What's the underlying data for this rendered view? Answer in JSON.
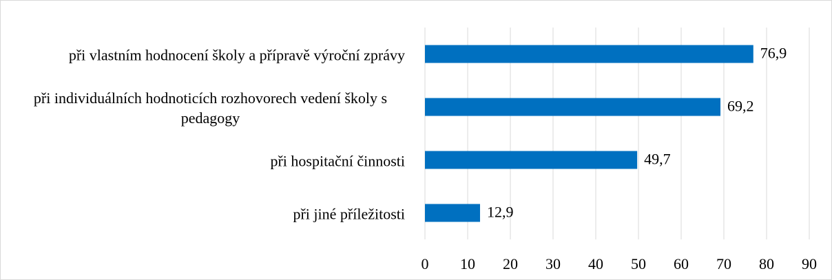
{
  "chart_data": {
    "type": "barh",
    "categories": [
      "při vlastním hodnocení školy a přípravě výroční zprávy",
      "při individuálních hodnoticích rozhovorech vedení školy s pedagogy",
      "při hospitační činnosti",
      "při jiné příležitosti"
    ],
    "values": [
      76.9,
      69.2,
      49.7,
      12.9
    ],
    "value_labels": [
      "76,9",
      "69,2",
      "49,7",
      "12,9"
    ],
    "color": "#0070c0",
    "xlim": [
      0,
      90
    ],
    "xticks": [
      0,
      10,
      20,
      30,
      40,
      50,
      60,
      70,
      80,
      90
    ],
    "grid": true
  }
}
